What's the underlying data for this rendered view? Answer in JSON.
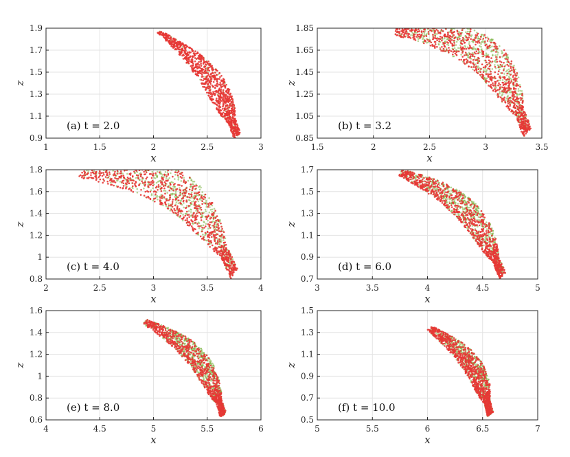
{
  "chart_data": [
    {
      "type": "scatter",
      "panel_label": "(a) t = 2.0",
      "xlabel": "x",
      "ylabel": "z",
      "xlim": [
        1,
        3
      ],
      "ylim": [
        0.9,
        1.9
      ],
      "xticks": [
        "1",
        "1.5",
        "2",
        "2.5",
        "3"
      ],
      "yticks": [
        "0.9",
        "1.1",
        "1.3",
        "1.5",
        "1.7",
        "1.9"
      ],
      "grid": true,
      "series": [
        {
          "name": "green particles",
          "color": "#7cb342"
        },
        {
          "name": "red particles",
          "color": "#e53935"
        }
      ],
      "plume": {
        "x0": 2.05,
        "z0": 1.87,
        "x1": 2.78,
        "z1": 0.92,
        "bulge": 0.12,
        "width_top": 0.03,
        "width_bottom": 0.17,
        "green_fraction": 0.08
      }
    },
    {
      "type": "scatter",
      "panel_label": "(b) t = 3.2",
      "xlabel": "x",
      "ylabel": "z",
      "xlim": [
        1.5,
        3.5
      ],
      "ylim": [
        0.85,
        1.85
      ],
      "xticks": [
        "1.5",
        "2",
        "2.5",
        "3",
        "3.5"
      ],
      "yticks": [
        "0.85",
        "1.05",
        "1.25",
        "1.45",
        "1.65",
        "1.85"
      ],
      "grid": true,
      "series": [
        {
          "name": "green particles",
          "color": "#7cb342"
        },
        {
          "name": "red particles",
          "color": "#e53935"
        }
      ],
      "plume": {
        "x0": 2.2,
        "z0": 1.85,
        "x1": 3.37,
        "z1": 0.9,
        "bulge": 0.3,
        "width_top": 0.12,
        "width_bottom": 0.22,
        "green_fraction": 0.5
      }
    },
    {
      "type": "scatter",
      "panel_label": "(c) t = 4.0",
      "xlabel": "x",
      "ylabel": "z",
      "xlim": [
        2,
        4
      ],
      "ylim": [
        0.8,
        1.8
      ],
      "xticks": [
        "2",
        "2.5",
        "3",
        "3.5",
        "4"
      ],
      "yticks": [
        "0.8",
        "1",
        "1.2",
        "1.4",
        "1.6",
        "1.8"
      ],
      "grid": true,
      "series": [
        {
          "name": "green particles",
          "color": "#7cb342"
        },
        {
          "name": "red particles",
          "color": "#e53935"
        }
      ],
      "plume": {
        "x0": 2.35,
        "z0": 1.8,
        "x1": 3.75,
        "z1": 0.85,
        "bulge": 0.32,
        "width_top": 0.15,
        "width_bottom": 0.22,
        "green_fraction": 0.5
      }
    },
    {
      "type": "scatter",
      "panel_label": "(d) t = 6.0",
      "xlabel": "x",
      "ylabel": "z",
      "xlim": [
        3,
        5
      ],
      "ylim": [
        0.7,
        1.7
      ],
      "xticks": [
        "3",
        "3.5",
        "4",
        "4.5",
        "5"
      ],
      "yticks": [
        "0.7",
        "0.9",
        "1.1",
        "1.3",
        "1.5",
        "1.7"
      ],
      "grid": true,
      "series": [
        {
          "name": "green particles",
          "color": "#7cb342"
        },
        {
          "name": "red particles",
          "color": "#e53935"
        }
      ],
      "plume": {
        "x0": 3.75,
        "z0": 1.68,
        "x1": 4.68,
        "z1": 0.73,
        "bulge": 0.18,
        "width_top": 0.06,
        "width_bottom": 0.16,
        "green_fraction": 0.5
      }
    },
    {
      "type": "scatter",
      "panel_label": "(e) t = 8.0",
      "xlabel": "x",
      "ylabel": "z",
      "xlim": [
        4,
        6
      ],
      "ylim": [
        0.6,
        1.6
      ],
      "xticks": [
        "4",
        "4.5",
        "5",
        "5.5",
        "6"
      ],
      "yticks": [
        "0.6",
        "0.8",
        "1",
        "1.2",
        "1.4",
        "1.6"
      ],
      "grid": true,
      "series": [
        {
          "name": "green particles",
          "color": "#7cb342"
        },
        {
          "name": "red particles",
          "color": "#e53935"
        }
      ],
      "plume": {
        "x0": 4.92,
        "z0": 1.5,
        "x1": 5.65,
        "z1": 0.64,
        "bulge": 0.15,
        "width_top": 0.05,
        "width_bottom": 0.14,
        "green_fraction": 0.5
      }
    },
    {
      "type": "scatter",
      "panel_label": "(f) t = 10.0",
      "xlabel": "x",
      "ylabel": "z",
      "xlim": [
        5,
        7
      ],
      "ylim": [
        0.5,
        1.5
      ],
      "xticks": [
        "5",
        "5.5",
        "6",
        "6.5",
        "7"
      ],
      "yticks": [
        "0.5",
        "0.7",
        "0.9",
        "1.1",
        "1.3",
        "1.5"
      ],
      "grid": true,
      "series": [
        {
          "name": "green particles",
          "color": "#7cb342"
        },
        {
          "name": "red particles",
          "color": "#e53935"
        }
      ],
      "plume": {
        "x0": 6.02,
        "z0": 1.34,
        "x1": 6.57,
        "z1": 0.55,
        "bulge": 0.12,
        "width_top": 0.05,
        "width_bottom": 0.13,
        "green_fraction": 0.5
      }
    }
  ]
}
